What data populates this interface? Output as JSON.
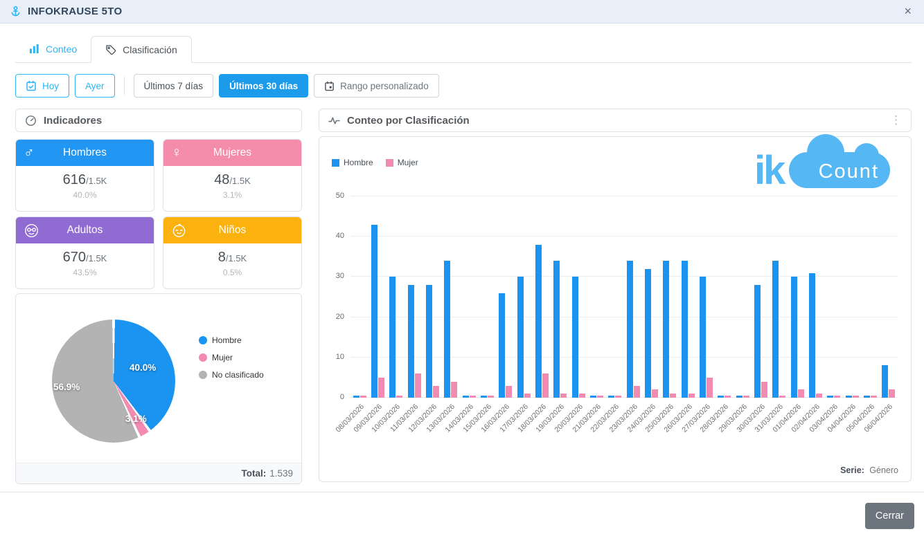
{
  "window": {
    "title": "INFOKRAUSE 5TO",
    "close": "×"
  },
  "tabs": {
    "conteo": "Conteo",
    "clasificacion": "Clasificación"
  },
  "filters": {
    "hoy": "Hoy",
    "ayer": "Ayer",
    "last7": "Últimos 7 días",
    "last30": "Últimos 30 días",
    "rango": "Rango personalizado"
  },
  "indicators": {
    "title": "Indicadores",
    "cards": [
      {
        "title": "Hombres",
        "icon": "male-icon",
        "value": "616",
        "total": "/1.5K",
        "percent": "40.0%",
        "color": "#2196f3"
      },
      {
        "title": "Mujeres",
        "icon": "female-icon",
        "value": "48",
        "total": "/1.5K",
        "percent": "3.1%",
        "color": "#f48cab"
      },
      {
        "title": "Adultos",
        "icon": "adult-icon",
        "value": "670",
        "total": "/1.5K",
        "percent": "43.5%",
        "color": "#8f6bd2"
      },
      {
        "title": "Niños",
        "icon": "baby-icon",
        "value": "8",
        "total": "/1.5K",
        "percent": "0.5%",
        "color": "#fbb20f"
      }
    ]
  },
  "pie_panel": {
    "total_label": "Total:",
    "total_value": "1.539"
  },
  "chart_panel": {
    "title": "Conteo por Clasificación",
    "menu_icon": "⋮",
    "series_label": "Serie:",
    "series_value": "Género",
    "logo": {
      "ik": "ik",
      "count": "Count"
    }
  },
  "footer": {
    "close_button": "Cerrar"
  },
  "chart_data": [
    {
      "type": "pie",
      "labels": [
        "Hombre",
        "Mujer",
        "No clasificado"
      ],
      "values_percent": [
        40.0,
        3.1,
        56.9
      ],
      "slice_labels": [
        "40.0%",
        "3.1%",
        "56.9%"
      ],
      "colors": [
        "#1a94f0",
        "#f28bb1",
        "#b3b3b3"
      ],
      "total": "1.539",
      "legend_position": "right"
    },
    {
      "type": "bar",
      "title": "Conteo por Clasificación",
      "categories": [
        "08/03/2026",
        "09/03/2026",
        "10/03/2026",
        "11/03/2026",
        "12/03/2026",
        "13/03/2026",
        "14/03/2026",
        "15/03/2026",
        "16/03/2026",
        "17/03/2026",
        "18/03/2026",
        "19/03/2026",
        "20/03/2026",
        "21/03/2026",
        "22/03/2026",
        "23/03/2026",
        "24/03/2026",
        "25/03/2026",
        "26/03/2026",
        "27/03/2026",
        "28/03/2026",
        "29/03/2026",
        "30/03/2026",
        "31/03/2026",
        "01/04/2026",
        "02/04/2026",
        "03/04/2026",
        "04/04/2026",
        "05/04/2026",
        "06/04/2026"
      ],
      "series": [
        {
          "name": "Hombre",
          "color": "#1a94f0",
          "values": [
            0.5,
            43,
            30,
            28,
            28,
            34,
            0.5,
            0.5,
            26,
            30,
            38,
            34,
            30,
            0.5,
            0.5,
            34,
            32,
            34,
            34,
            30,
            0.5,
            0.5,
            28,
            34,
            30,
            31,
            0.5,
            0.5,
            0.5,
            8
          ]
        },
        {
          "name": "Mujer",
          "color": "#f28bb1",
          "values": [
            0.5,
            5,
            0.5,
            6,
            3,
            4,
            0.5,
            0.5,
            3,
            1,
            6,
            1,
            1,
            0.5,
            0.5,
            3,
            2,
            1,
            1,
            5,
            0.5,
            0.5,
            4,
            0.5,
            2,
            1,
            0.5,
            0.5,
            0.5,
            2
          ]
        }
      ],
      "xlabel": "",
      "ylabel": "",
      "ylim": [
        0,
        50
      ],
      "yticks": [
        0,
        10,
        20,
        30,
        40,
        50
      ],
      "grid": true,
      "legend_position": "top-left"
    }
  ]
}
